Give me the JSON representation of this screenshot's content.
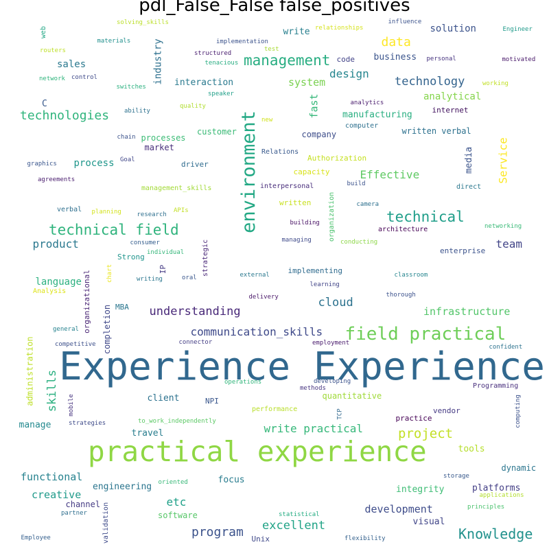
{
  "chart_data": {
    "type": "wordcloud",
    "title": "pdl_False_False false_positives",
    "words": [
      {
        "text": "Experience Experience",
        "color": "#31688e"
      },
      {
        "text": "practical experience",
        "color": "#8fd744"
      },
      {
        "text": "environment",
        "color": "#22a884"
      },
      {
        "text": "management",
        "color": "#27ad81"
      },
      {
        "text": "field practical",
        "color": "#6ece58"
      },
      {
        "text": "technical field",
        "color": "#2eb37c"
      },
      {
        "text": "technical",
        "color": "#1f9e89"
      },
      {
        "text": "technologies",
        "color": "#2fb47c"
      },
      {
        "text": "Knowledge",
        "color": "#21918c"
      },
      {
        "text": "project",
        "color": "#c2df23"
      },
      {
        "text": "communication_skills",
        "color": "#3e4989"
      },
      {
        "text": "understanding",
        "color": "#482878"
      },
      {
        "text": "program",
        "color": "#3b528b"
      },
      {
        "text": "excellent",
        "color": "#20a386"
      },
      {
        "text": "technology",
        "color": "#33638d"
      },
      {
        "text": "data",
        "color": "#fde725"
      },
      {
        "text": "design",
        "color": "#25858e"
      },
      {
        "text": "product",
        "color": "#2a788e"
      },
      {
        "text": "Effective",
        "color": "#5ec962"
      },
      {
        "text": "infrastructure",
        "color": "#52c569"
      },
      {
        "text": "write practical",
        "color": "#35b779"
      },
      {
        "text": "cloud",
        "color": "#2c728e"
      },
      {
        "text": "skills",
        "color": "#29af7f"
      },
      {
        "text": "functional",
        "color": "#26828e"
      },
      {
        "text": "development",
        "color": "#3e4c8a"
      },
      {
        "text": "etc",
        "color": "#1fa088"
      },
      {
        "text": "creative",
        "color": "#1f9a8a"
      },
      {
        "text": "team",
        "color": "#414487"
      },
      {
        "text": "Service",
        "color": "#fbe723"
      },
      {
        "text": "solution",
        "color": "#3b528b"
      },
      {
        "text": "system",
        "color": "#7ad151"
      },
      {
        "text": "analytical",
        "color": "#84d44b"
      },
      {
        "text": "manufacturing",
        "color": "#28ae80"
      },
      {
        "text": "industry",
        "color": "#2d708e"
      },
      {
        "text": "fast",
        "color": "#35b779"
      },
      {
        "text": "process",
        "color": "#1f968b"
      },
      {
        "text": "sales",
        "color": "#2a788e"
      },
      {
        "text": "write",
        "color": "#277f8e"
      },
      {
        "text": "business",
        "color": "#3a548c"
      },
      {
        "text": "interaction",
        "color": "#29798e"
      },
      {
        "text": "language",
        "color": "#2ab07f"
      },
      {
        "text": "media",
        "color": "#3a538b"
      },
      {
        "text": "C",
        "color": "#38598c"
      },
      {
        "text": "customer",
        "color": "#3aba76"
      },
      {
        "text": "processes",
        "color": "#3bbb75"
      },
      {
        "text": "company",
        "color": "#3d4d8a"
      },
      {
        "text": "written verbal",
        "color": "#2d718e"
      },
      {
        "text": "market",
        "color": "#472d7b"
      },
      {
        "text": "manage",
        "color": "#23898e"
      },
      {
        "text": "client",
        "color": "#2c728e"
      },
      {
        "text": "travel",
        "color": "#287d8e"
      },
      {
        "text": "engineering",
        "color": "#2b758e"
      },
      {
        "text": "focus",
        "color": "#287c8e"
      },
      {
        "text": "integrity",
        "color": "#3dbc74"
      },
      {
        "text": "platforms",
        "color": "#433e85"
      },
      {
        "text": "visual",
        "color": "#404588"
      },
      {
        "text": "tools",
        "color": "#b5de2b"
      },
      {
        "text": "dynamic",
        "color": "#2b758e"
      },
      {
        "text": "channel",
        "color": "#443a83"
      },
      {
        "text": "quantitative",
        "color": "#a0da39"
      },
      {
        "text": "administration",
        "color": "#bddf26"
      },
      {
        "text": "completion",
        "color": "#3f4788"
      },
      {
        "text": "organizational",
        "color": "#482374"
      },
      {
        "text": "organization",
        "color": "#4ac16d"
      },
      {
        "text": "validation",
        "color": "#3e4a89"
      },
      {
        "text": "practice",
        "color": "#440154"
      },
      {
        "text": "driver",
        "color": "#2f6c8e"
      },
      {
        "text": "implementing",
        "color": "#2f6b8e"
      },
      {
        "text": "Programming",
        "color": "#472e7c"
      },
      {
        "text": "enterprise",
        "color": "#3b528b"
      },
      {
        "text": "internet",
        "color": "#3f0f5c"
      },
      {
        "text": "software",
        "color": "#56c667"
      },
      {
        "text": "Strong",
        "color": "#1f948c"
      },
      {
        "text": "vendor",
        "color": "#443983"
      },
      {
        "text": "written",
        "color": "#c8e020"
      },
      {
        "text": "capacity",
        "color": "#d8e219"
      },
      {
        "text": "Authorization",
        "color": "#c5e021"
      },
      {
        "text": "management_skills",
        "color": "#a2da37"
      },
      {
        "text": "performance",
        "color": "#b8de29"
      },
      {
        "text": "Unix",
        "color": "#3f4889"
      },
      {
        "text": "code",
        "color": "#414287"
      },
      {
        "text": "IP",
        "color": "#443a83"
      },
      {
        "text": "NPI",
        "color": "#39568c"
      },
      {
        "text": "MBA",
        "color": "#2a768e"
      },
      {
        "text": "verbal",
        "color": "#2e6f8e"
      },
      {
        "text": "web",
        "color": "#22a785"
      },
      {
        "text": "direct",
        "color": "#2a778e"
      },
      {
        "text": "build",
        "color": "#3b528b"
      },
      {
        "text": "Relations",
        "color": "#38598c"
      },
      {
        "text": "strategic",
        "color": "#482677"
      },
      {
        "text": "interpersonal",
        "color": "#472c7a"
      },
      {
        "text": "architecture",
        "color": "#440154"
      },
      {
        "text": "camera",
        "color": "#2d708e"
      },
      {
        "text": "building",
        "color": "#471164"
      },
      {
        "text": "managing",
        "color": "#3e4989"
      },
      {
        "text": "conducting",
        "color": "#8bd646"
      },
      {
        "text": "networking",
        "color": "#38b977"
      },
      {
        "text": "computer",
        "color": "#2d708e"
      },
      {
        "text": "analytics",
        "color": "#481a6c"
      },
      {
        "text": "new",
        "color": "#d0e11c"
      },
      {
        "text": "oral",
        "color": "#39568c"
      },
      {
        "text": "writing",
        "color": "#2a768e"
      },
      {
        "text": "external",
        "color": "#2a788e"
      },
      {
        "text": "learning",
        "color": "#414487"
      },
      {
        "text": "classroom",
        "color": "#25858e"
      },
      {
        "text": "thorough",
        "color": "#3b518b"
      },
      {
        "text": "delivery",
        "color": "#481668"
      },
      {
        "text": "employment",
        "color": "#481a6c"
      },
      {
        "text": "confident",
        "color": "#2c728e"
      },
      {
        "text": "connector",
        "color": "#433d84"
      },
      {
        "text": "operations",
        "color": "#31b57b"
      },
      {
        "text": "developing",
        "color": "#3b528b"
      },
      {
        "text": "methods",
        "color": "#463480"
      },
      {
        "text": "TCP",
        "color": "#31688e"
      },
      {
        "text": "competitive",
        "color": "#3c4f8a"
      },
      {
        "text": "general",
        "color": "#26828e"
      },
      {
        "text": "mobile",
        "color": "#46337f"
      },
      {
        "text": "strategies",
        "color": "#3e4a89"
      },
      {
        "text": "to_work_independently",
        "color": "#5ac864"
      },
      {
        "text": "computing",
        "color": "#3b518b"
      },
      {
        "text": "storage",
        "color": "#38598c"
      },
      {
        "text": "applications",
        "color": "#b2dd2d"
      },
      {
        "text": "oriented",
        "color": "#37b878"
      },
      {
        "text": "principles",
        "color": "#4ac16d"
      },
      {
        "text": "statistical",
        "color": "#25ac82"
      },
      {
        "text": "partner",
        "color": "#2e6e8e"
      },
      {
        "text": "Employee",
        "color": "#345f8d"
      },
      {
        "text": "flexibility",
        "color": "#34618d"
      },
      {
        "text": "consumer",
        "color": "#355e8d"
      },
      {
        "text": "individual",
        "color": "#34b679"
      },
      {
        "text": "research",
        "color": "#2e6f8e"
      },
      {
        "text": "planning",
        "color": "#d2e21b"
      },
      {
        "text": "APIs",
        "color": "#c2df23"
      },
      {
        "text": "chart",
        "color": "#eae51a"
      },
      {
        "text": "Analysis",
        "color": "#dde318"
      },
      {
        "text": "graphics",
        "color": "#39558c"
      },
      {
        "text": "Goal",
        "color": "#404688"
      },
      {
        "text": "agreements",
        "color": "#481b6d"
      },
      {
        "text": "chain",
        "color": "#3b528b"
      },
      {
        "text": "ability",
        "color": "#2d718e"
      },
      {
        "text": "quality",
        "color": "#b0dd2f"
      },
      {
        "text": "speaker",
        "color": "#1f9f88"
      },
      {
        "text": "switches",
        "color": "#2ab07f"
      },
      {
        "text": "control",
        "color": "#3e4989"
      },
      {
        "text": "network",
        "color": "#2fb47c"
      },
      {
        "text": "tenacious",
        "color": "#27ad81"
      },
      {
        "text": "structured",
        "color": "#481c6e"
      },
      {
        "text": "implementation",
        "color": "#3b528b"
      },
      {
        "text": "materials",
        "color": "#21908d"
      },
      {
        "text": "routers",
        "color": "#bddf26"
      },
      {
        "text": "solving_skills",
        "color": "#bade28"
      },
      {
        "text": "relationships",
        "color": "#d5e21a"
      },
      {
        "text": "test",
        "color": "#a8db34"
      },
      {
        "text": "influence",
        "color": "#3b528b"
      },
      {
        "text": "personal",
        "color": "#46337f"
      },
      {
        "text": "motivated",
        "color": "#48186a"
      },
      {
        "text": "Engineer",
        "color": "#1f9a8a"
      },
      {
        "text": "working",
        "color": "#c0df25"
      }
    ]
  }
}
